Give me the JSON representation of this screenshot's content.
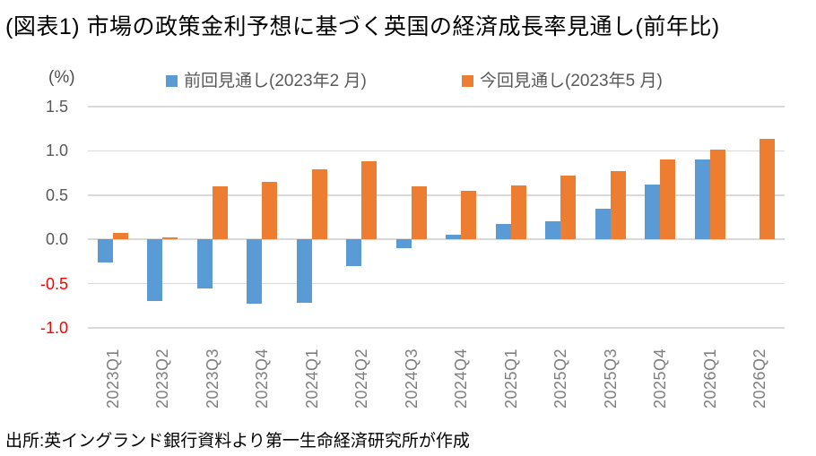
{
  "title": "(図表1) 市場の政策金利予想に基づく英国の経済成長率見通し(前年比)",
  "unit_label": "(%)",
  "source": "出所:英イングランド銀行資料より第一生命経済研究所が作成",
  "colors": {
    "previous_series": "#5B9BD5",
    "current_series": "#ED7D31",
    "gridline": "#D9D9D9",
    "negative_tick": "#FF0000",
    "positive_tick": "#595959",
    "x_tick": "#7F7F7F"
  },
  "chart_data": {
    "type": "bar",
    "title": "(図表1) 市場の政策金利予想に基づく英国の経済成長率見通し(前年比)",
    "ylabel": "(%)",
    "categories": [
      "2023Q1",
      "2023Q2",
      "2023Q3",
      "2023Q4",
      "2024Q1",
      "2024Q2",
      "2024Q3",
      "2024Q4",
      "2025Q1",
      "2025Q2",
      "2025Q3",
      "2025Q4",
      "2026Q1",
      "2026Q2"
    ],
    "series": [
      {
        "key": "previous",
        "name": "前回見通し(2023年2 月)",
        "color": "#5B9BD5",
        "values": [
          -0.26,
          -0.7,
          -0.55,
          -0.73,
          -0.72,
          -0.3,
          -0.1,
          0.05,
          0.17,
          0.2,
          0.35,
          0.62,
          0.9,
          null
        ]
      },
      {
        "key": "current",
        "name": "今回見通し(2023年5 月)",
        "color": "#ED7D31",
        "values": [
          0.07,
          0.02,
          0.6,
          0.65,
          0.79,
          0.88,
          0.6,
          0.55,
          0.61,
          0.72,
          0.77,
          0.9,
          1.01,
          1.14
        ]
      }
    ],
    "ylim": [
      -1.0,
      1.5
    ],
    "yticks": [
      1.5,
      1.0,
      0.5,
      0.0,
      -0.5,
      -1.0
    ],
    "ytick_labels": [
      "1.5",
      "1.0",
      "0.5",
      "0.0",
      "-0.5",
      "-1.0"
    ],
    "grid": true,
    "legend_position": "top"
  }
}
